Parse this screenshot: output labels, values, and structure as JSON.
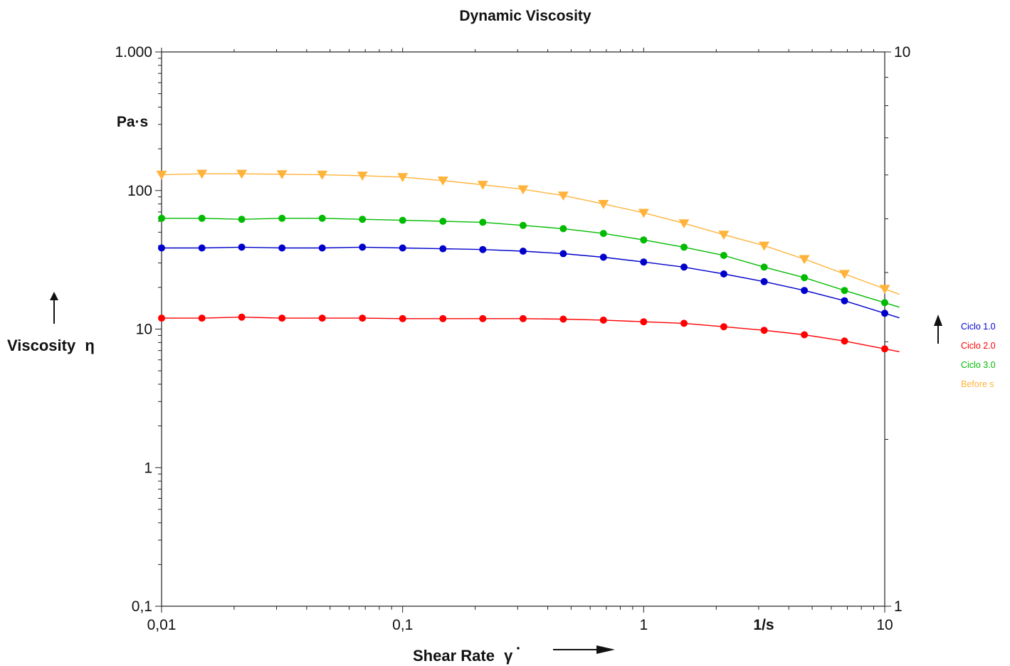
{
  "chart_data": {
    "type": "line",
    "title": "Dynamic Viscosity",
    "xlabel": "Shear Rate",
    "xlabel_symbol": "γ",
    "ylabel": "Viscosity",
    "ylabel_symbol": "η",
    "x_unit": "1/s",
    "y_unit": "Pa·s",
    "x_scale": "log",
    "y_scale": "log",
    "xlim": [
      0.01,
      10
    ],
    "ylim": [
      0.1,
      1000
    ],
    "y2lim": [
      1,
      10
    ],
    "x_ticks": [
      {
        "value": 0.01,
        "label": "0,01"
      },
      {
        "value": 0.1,
        "label": "0,1"
      },
      {
        "value": 1,
        "label": "1"
      },
      {
        "value": 10,
        "label": "10"
      }
    ],
    "y_ticks": [
      {
        "value": 0.1,
        "label": "0,1"
      },
      {
        "value": 1,
        "label": "1"
      },
      {
        "value": 10,
        "label": "10"
      },
      {
        "value": 100,
        "label": "100"
      },
      {
        "value": 1000,
        "label": "1.000"
      }
    ],
    "y2_ticks": [
      {
        "value": 1,
        "label": "1"
      },
      {
        "value": 10,
        "label": "10"
      }
    ],
    "grid": false,
    "legend_position": "right",
    "x": [
      0.01,
      0.0147,
      0.0215,
      0.0316,
      0.0464,
      0.0681,
      0.1,
      0.147,
      0.215,
      0.316,
      0.464,
      0.681,
      1,
      1.47,
      2.15,
      3.16,
      4.64,
      6.81,
      10
    ],
    "series": [
      {
        "name": "Ciclo 1.0",
        "color": "#0000cc",
        "marker": "circle",
        "values": [
          38.5,
          38.5,
          39,
          38.5,
          38.5,
          39,
          38.5,
          38,
          37.5,
          36.5,
          35,
          33,
          30.5,
          28,
          25,
          22,
          19,
          16,
          13
        ]
      },
      {
        "name": "Ciclo 2.0",
        "color": "#ff0000",
        "marker": "circle",
        "values": [
          12,
          12,
          12.2,
          12,
          12,
          12,
          11.9,
          11.9,
          11.9,
          11.9,
          11.8,
          11.6,
          11.3,
          11,
          10.4,
          9.8,
          9.1,
          8.2,
          7.2
        ]
      },
      {
        "name": "Ciclo 3.0",
        "color": "#00bb00",
        "marker": "circle",
        "values": [
          63,
          63,
          62,
          63,
          63,
          62,
          61,
          60,
          59,
          56,
          53,
          49,
          44,
          39,
          34,
          28,
          23.5,
          19,
          15.5
        ]
      },
      {
        "name": "Before s",
        "color": "#ffb33a",
        "marker": "triangle-down",
        "values": [
          130,
          132,
          132,
          131,
          130,
          128,
          125,
          118,
          110,
          102,
          92,
          80,
          69,
          58,
          48,
          40,
          32,
          25,
          19.5
        ]
      }
    ]
  }
}
